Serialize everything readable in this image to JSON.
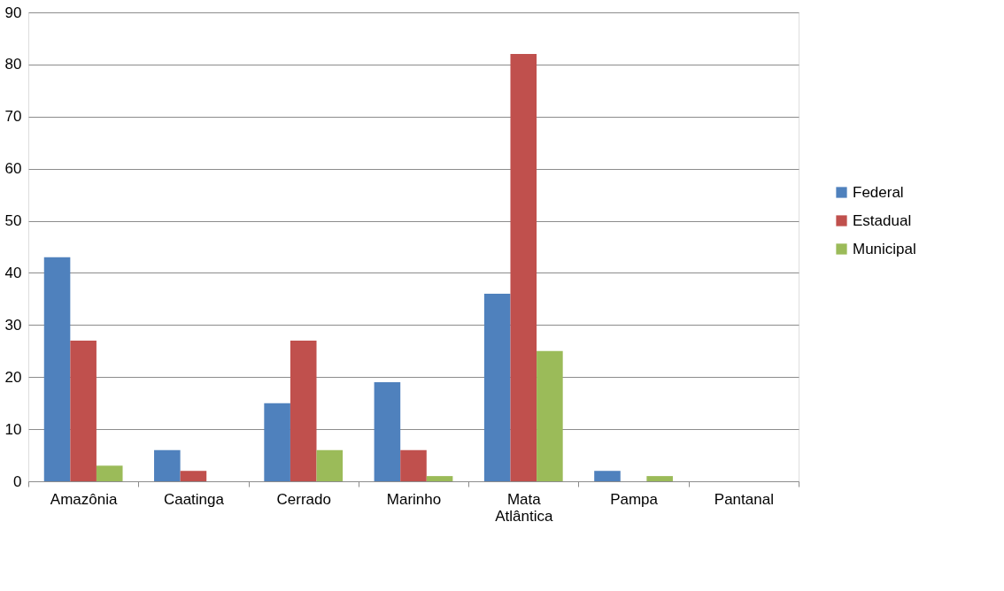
{
  "chart_data": {
    "type": "bar",
    "categories": [
      "Amazônia",
      "Caatinga",
      "Cerrado",
      "Marinho",
      "Mata Atlântica",
      "Pampa",
      "Pantanal"
    ],
    "series": [
      {
        "name": "Federal",
        "color": "#4f81bd",
        "values": [
          43,
          6,
          15,
          19,
          36,
          2,
          0
        ]
      },
      {
        "name": "Estadual",
        "color": "#c0504d",
        "values": [
          27,
          2,
          27,
          6,
          82,
          0,
          0
        ]
      },
      {
        "name": "Municipal",
        "color": "#9bbb59",
        "values": [
          3,
          0,
          6,
          1,
          25,
          1,
          0
        ]
      }
    ],
    "ylim": [
      0,
      90
    ],
    "yticks": [
      0,
      10,
      20,
      30,
      40,
      50,
      60,
      70,
      80,
      90
    ],
    "grid": "y",
    "legend": "right"
  }
}
